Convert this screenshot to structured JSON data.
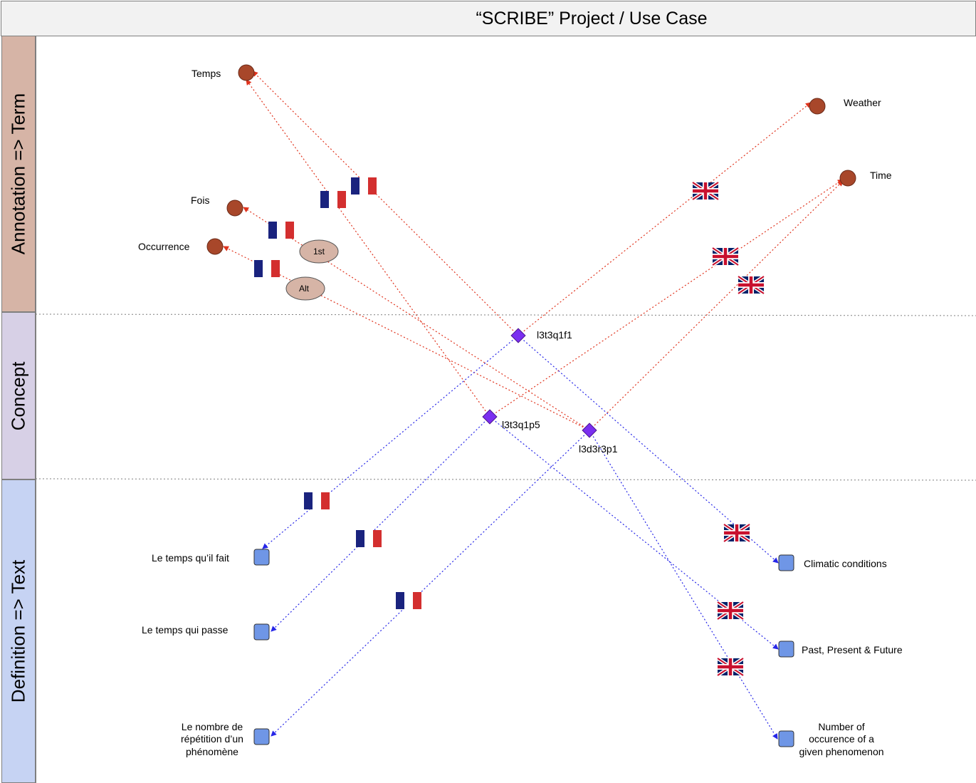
{
  "title": "“SCRIBE” Project / Use Case",
  "lanes": {
    "annotation": "Annotation => Term",
    "concept": "Concept",
    "definition": "Definition => Text"
  },
  "terms": {
    "temps": "Temps",
    "fois": "Fois",
    "occurrence": "Occurrence",
    "weather": "Weather",
    "time": "Time"
  },
  "qualifiers": {
    "first": "1st",
    "alt": "Alt"
  },
  "concepts": {
    "c1": "l3t3q1f1",
    "c2": "l3t3q1p5",
    "c3": "l3d3r3p1"
  },
  "definitions": {
    "fr_weather": "Le temps qu’il fait",
    "fr_time": "Le temps qui passe",
    "fr_occurrence": [
      "Le nombre de",
      "répétition d’un",
      "phénomène"
    ],
    "en_weather": "Climatic conditions",
    "en_time": "Past, Present & Future",
    "en_occurrence": [
      "Number of",
      "occurence of a",
      "given phenomenon"
    ]
  },
  "colors": {
    "term_node": "#a8472a",
    "concept_node": "#7b2ff0",
    "text_node": "#6f96e6",
    "oval": "#d6b4a6",
    "red_link": "#e0331d",
    "blue_link": "#2727e8",
    "flag_blue": "#1a237e",
    "flag_red": "#d32f2f"
  }
}
